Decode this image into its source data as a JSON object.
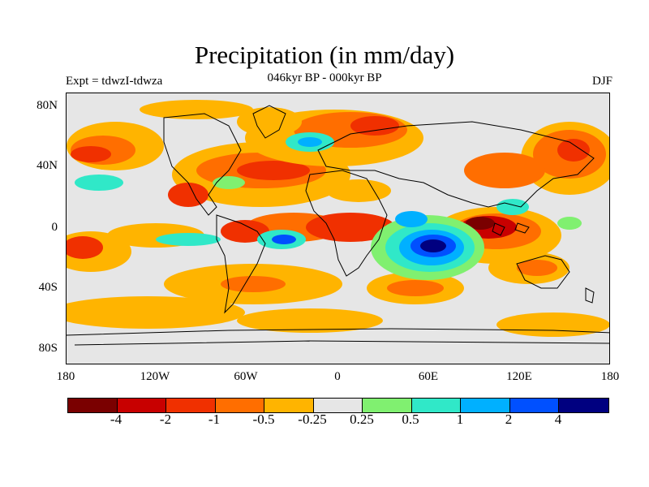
{
  "header": {
    "title": "Precipitation (in mm/day)",
    "subtitle": "046kyr BP - 000kyr BP",
    "experiment": "Expt = tdwzI-tdwza",
    "season": "DJF"
  },
  "axes": {
    "y_labels": [
      "80N",
      "40N",
      "0",
      "40S",
      "80S"
    ],
    "x_labels": [
      "180",
      "120W",
      "60W",
      "0",
      "60E",
      "120E",
      "180"
    ]
  },
  "colorbar": {
    "colors": [
      "#7a0000",
      "#c80000",
      "#f03000",
      "#ff6e00",
      "#ffb400",
      "#e6e6e6",
      "#80f070",
      "#30e8c8",
      "#00b0ff",
      "#0050ff",
      "#000080"
    ],
    "tick_labels": [
      "-4",
      "-2",
      "-1",
      "-0.5",
      "-0.25",
      "0.25",
      "0.5",
      "1",
      "2",
      "4"
    ]
  },
  "palette": {
    "map_background": "#e6e6e6",
    "coastline": "#000000"
  }
}
